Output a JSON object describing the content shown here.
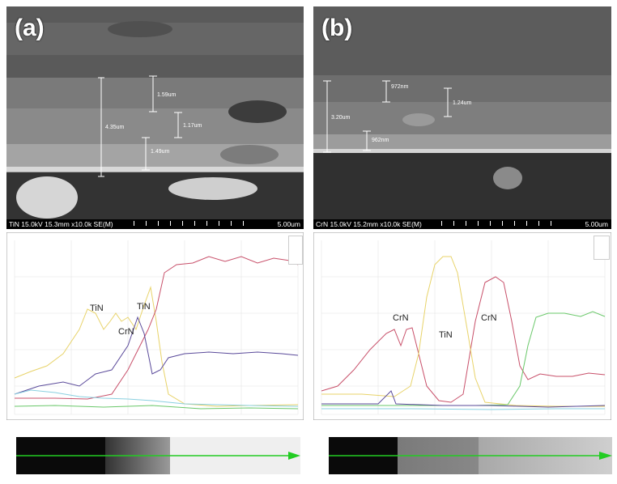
{
  "panels": [
    {
      "letter": "(a)",
      "sem_info": "TiN 15.0kV 15.3mm x10.0k SE(M)",
      "scale": "5.00um",
      "measurements": [
        "1.59um",
        "4.35um",
        "1.17um",
        "1.49um"
      ],
      "profile_labels": [
        "TiN",
        "TiN",
        "CrN"
      ]
    },
    {
      "letter": "(b)",
      "sem_info": "CrN 15.0kV 15.2mm x10.0k SE(M)",
      "scale": "5.00um",
      "measurements": [
        "972nm",
        "1.24um",
        "3.20um",
        "962nm"
      ],
      "profile_labels": [
        "CrN",
        "TiN",
        "CrN"
      ]
    }
  ],
  "colors": {
    "line_yellow": "#e8d36a",
    "line_red": "#c8506a",
    "line_purple": "#5a4a9a",
    "line_green": "#6ac86a",
    "line_cyan": "#8ad0e0",
    "arrow_green": "#22cc22"
  }
}
